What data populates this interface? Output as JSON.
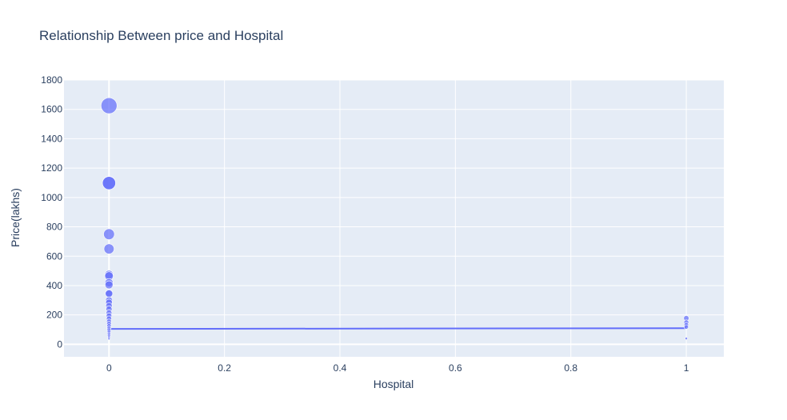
{
  "chart_data": {
    "type": "scatter",
    "title": "Relationship Between price and Hospital",
    "xlabel": "Hospital",
    "ylabel": "Price(lakhs)",
    "xlim": [
      -0.078,
      1.065
    ],
    "ylim": [
      -85,
      1800
    ],
    "x_ticks": [
      0,
      0.2,
      0.4,
      0.6,
      0.8,
      1
    ],
    "x_tick_labels": [
      "0",
      "0.2",
      "0.4",
      "0.6",
      "0.8",
      "1"
    ],
    "y_ticks": [
      0,
      200,
      400,
      600,
      800,
      1000,
      1200,
      1400,
      1600,
      1800
    ],
    "y_tick_labels": [
      "0",
      "200",
      "400",
      "600",
      "800",
      "1000",
      "1200",
      "1400",
      "1600",
      "1800"
    ],
    "grid": true,
    "colors": {
      "marker": "#636efa",
      "background": "#e5ecf6",
      "grid": "#ffffff",
      "text": "#2a3f5f"
    },
    "series": [
      {
        "points": [
          {
            "x": 0,
            "y": 1625
          },
          {
            "x": 0,
            "y": 1100
          },
          {
            "x": 0,
            "y": 1098
          },
          {
            "x": 0,
            "y": 750
          },
          {
            "x": 0,
            "y": 650
          },
          {
            "x": 0,
            "y": 475
          },
          {
            "x": 0,
            "y": 465
          },
          {
            "x": 0,
            "y": 420
          },
          {
            "x": 0,
            "y": 405
          },
          {
            "x": 0,
            "y": 350
          },
          {
            "x": 0,
            "y": 345
          },
          {
            "x": 0,
            "y": 300
          },
          {
            "x": 0,
            "y": 285
          },
          {
            "x": 0,
            "y": 262
          },
          {
            "x": 0,
            "y": 240
          },
          {
            "x": 0,
            "y": 215
          },
          {
            "x": 0,
            "y": 195
          },
          {
            "x": 0,
            "y": 175
          },
          {
            "x": 0,
            "y": 155
          },
          {
            "x": 0,
            "y": 140
          },
          {
            "x": 0,
            "y": 125
          },
          {
            "x": 0,
            "y": 110
          },
          {
            "x": 0,
            "y": 98
          },
          {
            "x": 0,
            "y": 85
          },
          {
            "x": 0,
            "y": 72
          },
          {
            "x": 0,
            "y": 60
          },
          {
            "x": 0,
            "y": 48
          },
          {
            "x": 0,
            "y": 38
          },
          {
            "x": 1,
            "y": 178
          },
          {
            "x": 1,
            "y": 150
          },
          {
            "x": 1,
            "y": 132
          },
          {
            "x": 1,
            "y": 118
          },
          {
            "x": 1,
            "y": 40
          }
        ]
      }
    ],
    "trendline": {
      "x": [
        0,
        1
      ],
      "y": [
        105,
        110
      ]
    }
  }
}
